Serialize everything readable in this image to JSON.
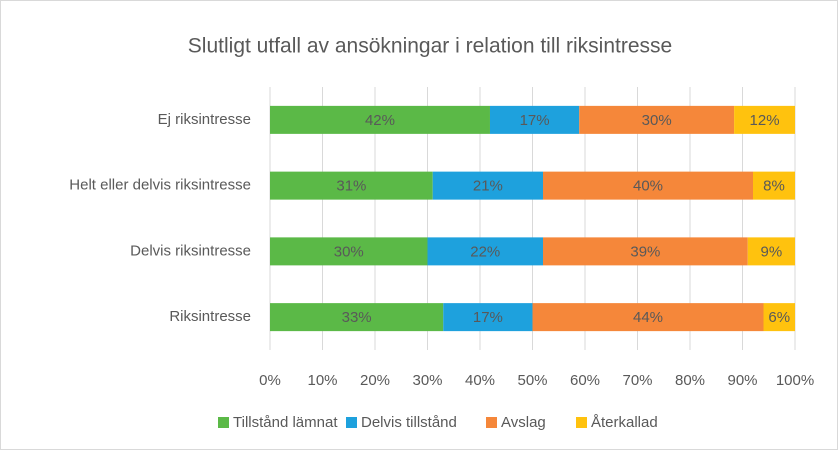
{
  "chart_data": {
    "type": "stacked_barh",
    "title": "Slutligt utfall av ansökningar i relation till riksintresse",
    "categories": [
      "Ej riksintresse",
      "Helt eller delvis riksintresse",
      "Delvis riksintresse",
      "Riksintresse"
    ],
    "series": [
      {
        "name": "Tillstånd lämnat",
        "color": "#5bb947",
        "values": [
          41.9,
          31,
          30,
          33
        ],
        "value_labels": [
          "42%",
          "31%",
          "30%",
          "33%"
        ]
      },
      {
        "name": "Delvis tillstånd",
        "color": "#1ea1dd",
        "values": [
          17,
          21,
          22,
          17
        ],
        "value_labels": [
          "17%",
          "21%",
          "22%",
          "17%"
        ]
      },
      {
        "name": "Avslag",
        "color": "#f5873a",
        "values": [
          29.5,
          40,
          39,
          44
        ],
        "value_labels": [
          "30%",
          "40%",
          "39%",
          "44%"
        ]
      },
      {
        "name": "Återkallad",
        "color": "#ffc20e",
        "values": [
          11.6,
          8,
          9,
          6
        ],
        "value_labels": [
          "12%",
          "8%",
          "9%",
          "6%"
        ]
      }
    ],
    "xlim": [
      0,
      100
    ],
    "xticks": [
      {
        "value": 0,
        "label": "0%"
      },
      {
        "value": 10,
        "label": "10%"
      },
      {
        "value": 20,
        "label": "20%"
      },
      {
        "value": 30,
        "label": "30%"
      },
      {
        "value": 40,
        "label": "40%"
      },
      {
        "value": 50,
        "label": "50%"
      },
      {
        "value": 60,
        "label": "60%"
      },
      {
        "value": 70,
        "label": "70%"
      },
      {
        "value": 80,
        "label": "80%"
      },
      {
        "value": 90,
        "label": "90%"
      },
      {
        "value": 100,
        "label": "100%"
      }
    ],
    "grid": true,
    "legend": "bottom"
  }
}
